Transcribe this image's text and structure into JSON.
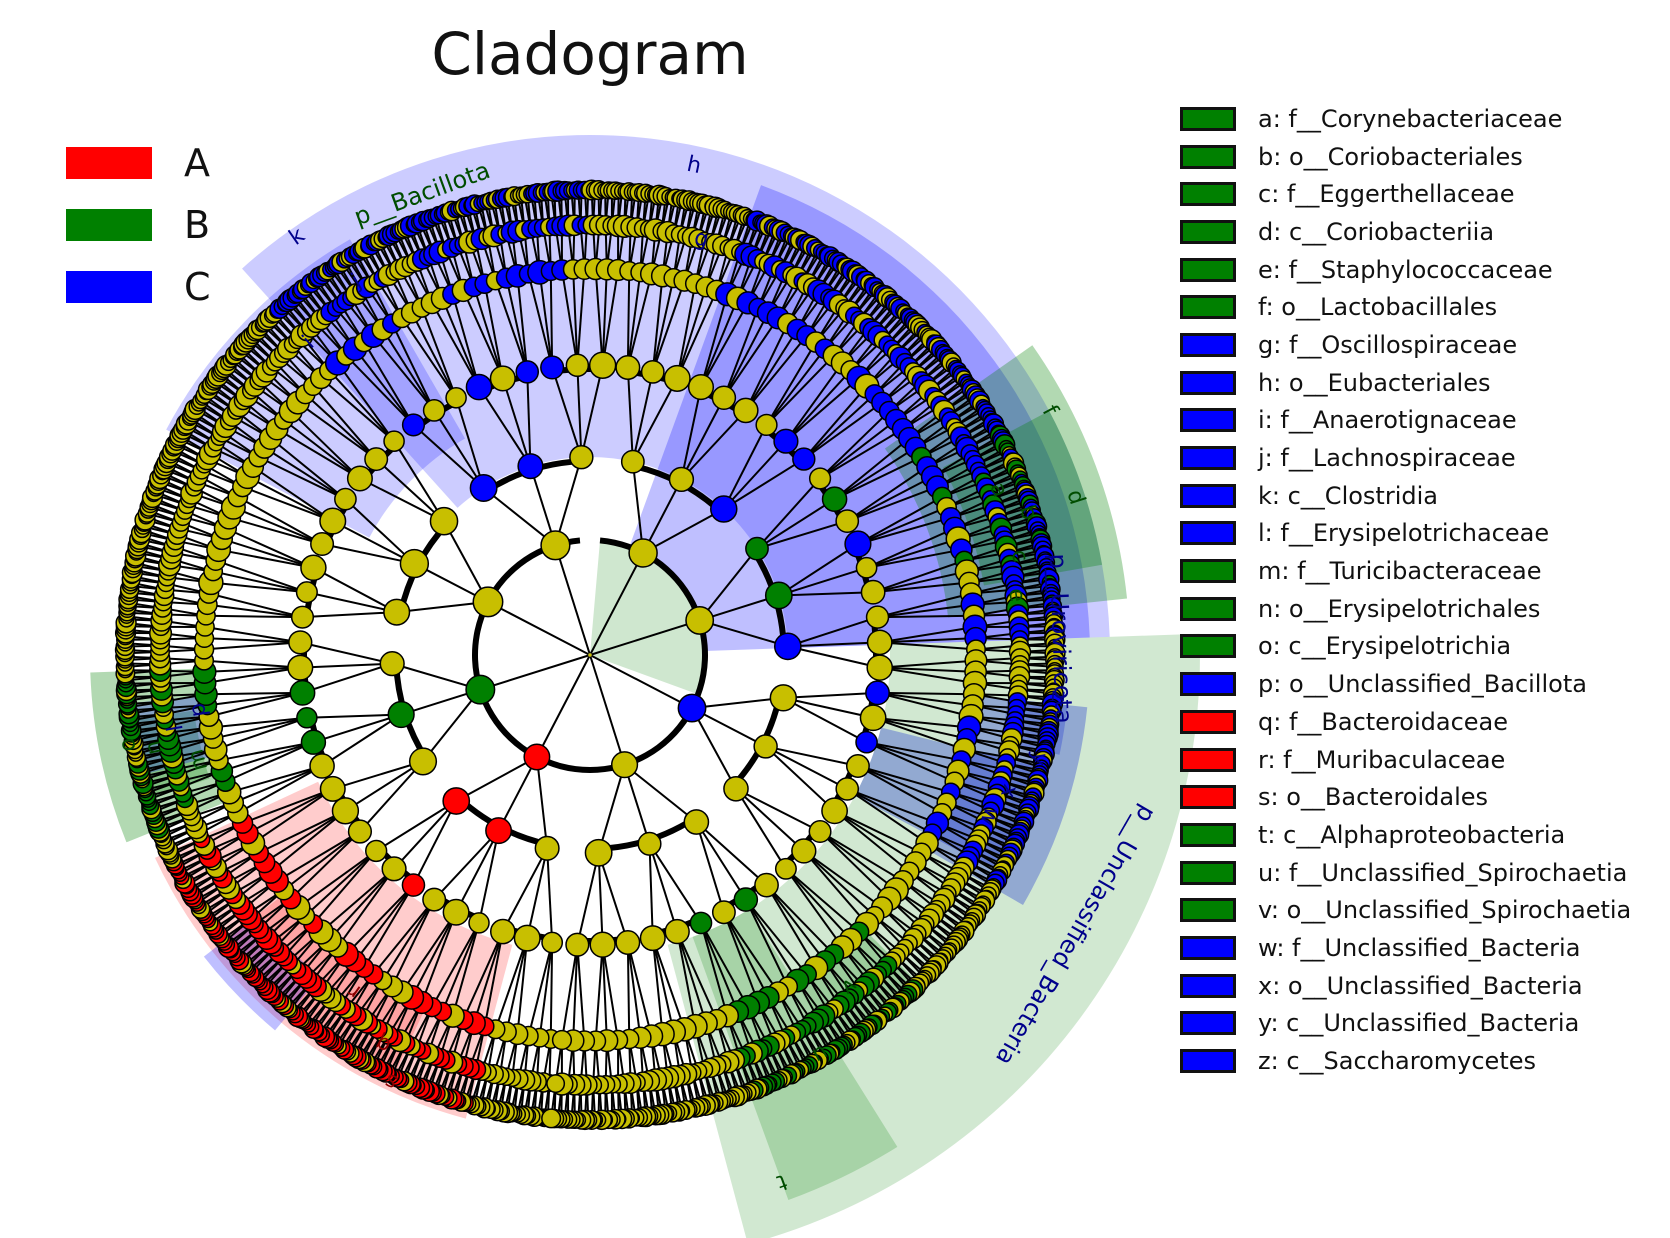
{
  "title": "Cladogram",
  "colors": {
    "A": "#ff0000",
    "B": "#008000",
    "C": "#0000ff",
    "neutral": "#c8bf00"
  },
  "groups": [
    {
      "name": "A",
      "color": "#ff0000"
    },
    {
      "name": "B",
      "color": "#008000"
    },
    {
      "name": "C",
      "color": "#0000ff"
    }
  ],
  "clades": [
    {
      "letter": "a",
      "label": "a: f__Corynebacteriaceae",
      "group": "B"
    },
    {
      "letter": "b",
      "label": "b: o__Coriobacteriales",
      "group": "B"
    },
    {
      "letter": "c",
      "label": "c: f__Eggerthellaceae",
      "group": "B"
    },
    {
      "letter": "d",
      "label": "d: c__Coriobacteriia",
      "group": "B"
    },
    {
      "letter": "e",
      "label": "e: f__Staphylococcaceae",
      "group": "B"
    },
    {
      "letter": "f",
      "label": "f: o__Lactobacillales",
      "group": "B"
    },
    {
      "letter": "g",
      "label": "g: f__Oscillospiraceae",
      "group": "C"
    },
    {
      "letter": "h",
      "label": "h: o__Eubacteriales",
      "group": "C"
    },
    {
      "letter": "i",
      "label": "i: f__Anaerotignaceae",
      "group": "C"
    },
    {
      "letter": "j",
      "label": "j: f__Lachnospiraceae",
      "group": "C"
    },
    {
      "letter": "k",
      "label": "k: c__Clostridia",
      "group": "C"
    },
    {
      "letter": "l",
      "label": "l: f__Erysipelotrichaceae",
      "group": "C"
    },
    {
      "letter": "m",
      "label": "m: f__Turicibacteraceae",
      "group": "B"
    },
    {
      "letter": "n",
      "label": "n: o__Erysipelotrichales",
      "group": "B"
    },
    {
      "letter": "o",
      "label": "o: c__Erysipelotrichia",
      "group": "B"
    },
    {
      "letter": "p",
      "label": "p: o__Unclassified_Bacillota",
      "group": "C"
    },
    {
      "letter": "q",
      "label": "q: f__Bacteroidaceae",
      "group": "A"
    },
    {
      "letter": "r",
      "label": "r: f__Muribaculaceae",
      "group": "A"
    },
    {
      "letter": "s",
      "label": "s: o__Bacteroidales",
      "group": "A"
    },
    {
      "letter": "t",
      "label": "t: c__Alphaproteobacteria",
      "group": "B"
    },
    {
      "letter": "u",
      "label": "u: f__Unclassified_Spirochaetia",
      "group": "B"
    },
    {
      "letter": "v",
      "label": "v: o__Unclassified_Spirochaetia",
      "group": "B"
    },
    {
      "letter": "w",
      "label": "w: f__Unclassified_Bacteria",
      "group": "C"
    },
    {
      "letter": "x",
      "label": "x: o__Unclassified_Bacteria",
      "group": "C"
    },
    {
      "letter": "y",
      "label": "y: c__Unclassified_Bacteria",
      "group": "C"
    },
    {
      "letter": "z",
      "label": "z: c__Saccharomycetes",
      "group": "C"
    }
  ],
  "phylum_labels": [
    {
      "text": "p__Bacillota",
      "group": "B"
    },
    {
      "text": "p__Uroviricota",
      "group": "C"
    },
    {
      "text": "p__Unclassified_Bacteria",
      "group": "C"
    }
  ]
}
